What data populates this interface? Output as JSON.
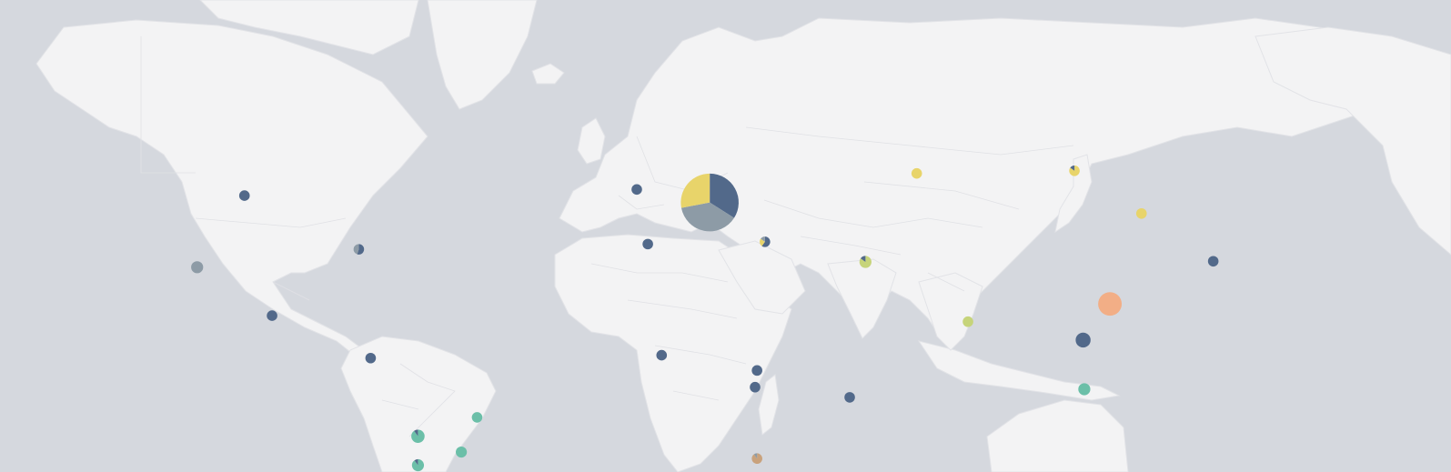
{
  "map": {
    "type": "world-map-with-pie-markers",
    "ocean_color": "#d5d8de",
    "land_color": "#f3f3f4",
    "border_color": "#e0e1e5",
    "palette": {
      "navy": "#52698a",
      "slate": "#8d9ba6",
      "yellow": "#e8d46a",
      "lime": "#c6d47a",
      "teal": "#6bbfa8",
      "orange": "#f2ae86",
      "tan": "#c9a27c"
    }
  },
  "chart_data": {
    "type": "pie-markers-on-map",
    "title": "",
    "markers": [
      {
        "name": "",
        "lon": -106,
        "lat": 52,
        "total": 1,
        "slices": [
          {
            "color": "#52698a",
            "value": 1
          }
        ]
      },
      {
        "name": "",
        "lon": -77,
        "lat": 39,
        "total": 1,
        "slices": [
          {
            "color": "#52698a",
            "value": 0.55
          },
          {
            "color": "#8d9ba6",
            "value": 0.45
          }
        ]
      },
      {
        "name": "",
        "lon": -118,
        "lat": 34,
        "total": 1.3,
        "slices": [
          {
            "color": "#8d9ba6",
            "value": 1
          }
        ]
      },
      {
        "name": "",
        "lon": -99,
        "lat": 19,
        "total": 1,
        "slices": [
          {
            "color": "#52698a",
            "value": 1
          }
        ]
      },
      {
        "name": "",
        "lon": -74,
        "lat": 4.6,
        "total": 1,
        "slices": [
          {
            "color": "#52698a",
            "value": 1
          }
        ]
      },
      {
        "name": "",
        "lon": -47,
        "lat": -15.8,
        "total": 1,
        "slices": [
          {
            "color": "#6bbfa8",
            "value": 1
          }
        ]
      },
      {
        "name": "",
        "lon": -62,
        "lat": -22,
        "total": 1.6,
        "slices": [
          {
            "color": "#6bbfa8",
            "value": 0.9
          },
          {
            "color": "#52698a",
            "value": 0.1
          }
        ]
      },
      {
        "name": "",
        "lon": -51,
        "lat": -27,
        "total": 1.1,
        "slices": [
          {
            "color": "#6bbfa8",
            "value": 1
          }
        ]
      },
      {
        "name": "",
        "lon": -62,
        "lat": -31,
        "total": 1.3,
        "slices": [
          {
            "color": "#6bbfa8",
            "value": 0.9
          },
          {
            "color": "#52698a",
            "value": 0.1
          }
        ]
      },
      {
        "name": "",
        "lon": -6.5,
        "lat": 53.3,
        "total": 1,
        "slices": [
          {
            "color": "#52698a",
            "value": 1
          }
        ]
      },
      {
        "name": "",
        "lon": -3.7,
        "lat": 40.4,
        "total": 1,
        "slices": [
          {
            "color": "#52698a",
            "value": 1
          }
        ]
      },
      {
        "name": "",
        "lon": 12,
        "lat": 50.5,
        "total": 30,
        "slices": [
          {
            "color": "#52698a",
            "value": 0.34
          },
          {
            "color": "#8d9ba6",
            "value": 0.38
          },
          {
            "color": "#e8d46a",
            "value": 0.28
          }
        ]
      },
      {
        "name": "",
        "lon": 26,
        "lat": 41,
        "total": 1,
        "slices": [
          {
            "color": "#52698a",
            "value": 0.6
          },
          {
            "color": "#e8d46a",
            "value": 0.25
          },
          {
            "color": "#8d9ba6",
            "value": 0.15
          }
        ]
      },
      {
        "name": "",
        "lon": -0.2,
        "lat": 5.6,
        "total": 1,
        "slices": [
          {
            "color": "#52698a",
            "value": 1
          }
        ]
      },
      {
        "name": "",
        "lon": 24,
        "lat": 0.3,
        "total": 1,
        "slices": [
          {
            "color": "#52698a",
            "value": 1
          }
        ]
      },
      {
        "name": "",
        "lon": 23.5,
        "lat": -5.5,
        "total": 1,
        "slices": [
          {
            "color": "#52698a",
            "value": 1
          }
        ]
      },
      {
        "name": "",
        "lon": 47.5,
        "lat": -9,
        "total": 1,
        "slices": [
          {
            "color": "#52698a",
            "value": 1
          }
        ]
      },
      {
        "name": "",
        "lon": 24,
        "lat": -29,
        "total": 1,
        "slices": [
          {
            "color": "#c9a27c",
            "value": 0.9
          },
          {
            "color": "#8d9ba6",
            "value": 0.1
          }
        ]
      },
      {
        "name": "",
        "lon": 64.5,
        "lat": 56.5,
        "total": 1,
        "slices": [
          {
            "color": "#e8d46a",
            "value": 1
          }
        ]
      },
      {
        "name": "",
        "lon": 51.5,
        "lat": 35.5,
        "total": 1.3,
        "slices": [
          {
            "color": "#c6d47a",
            "value": 0.85
          },
          {
            "color": "#52698a",
            "value": 0.15
          }
        ]
      },
      {
        "name": "",
        "lon": 77.5,
        "lat": 17,
        "total": 1,
        "slices": [
          {
            "color": "#c6d47a",
            "value": 1
          }
        ]
      },
      {
        "name": "",
        "lon": 104.5,
        "lat": 57,
        "total": 1,
        "slices": [
          {
            "color": "#e8d46a",
            "value": 0.85
          },
          {
            "color": "#52698a",
            "value": 0.15
          }
        ]
      },
      {
        "name": "",
        "lon": 121.5,
        "lat": 48,
        "total": 1,
        "slices": [
          {
            "color": "#e8d46a",
            "value": 1
          }
        ]
      },
      {
        "name": "",
        "lon": 139.7,
        "lat": 35.7,
        "total": 1,
        "slices": [
          {
            "color": "#52698a",
            "value": 1
          }
        ]
      },
      {
        "name": "",
        "lon": 113.5,
        "lat": 22.8,
        "total": 5,
        "slices": [
          {
            "color": "#f2ae86",
            "value": 1
          }
        ]
      },
      {
        "name": "",
        "lon": 106.7,
        "lat": 10.8,
        "total": 2,
        "slices": [
          {
            "color": "#52698a",
            "value": 1
          }
        ]
      },
      {
        "name": "",
        "lon": 107,
        "lat": -6.2,
        "total": 1.3,
        "slices": [
          {
            "color": "#6bbfa8",
            "value": 1
          }
        ]
      }
    ]
  }
}
